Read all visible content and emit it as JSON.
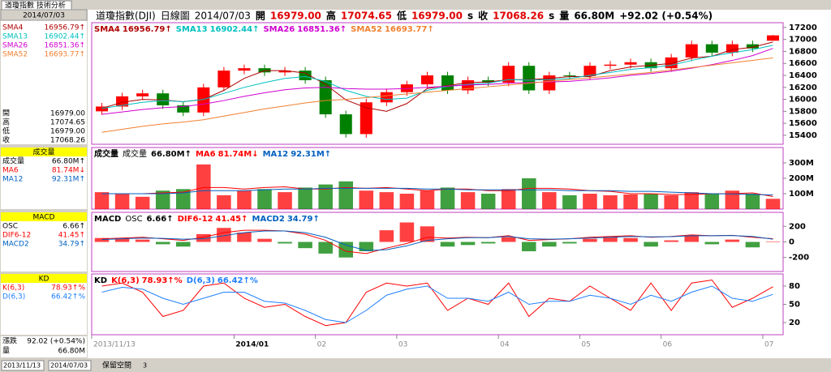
{
  "window": {
    "tab": "道瓊指數 技術分析"
  },
  "header": {
    "items": [
      {
        "text": "道瓊指數(DJI)",
        "color": "#000"
      },
      {
        "text": "日線圖",
        "color": "#000"
      },
      {
        "text": "2014/07/03",
        "color": "#000"
      },
      {
        "text": "開",
        "color": "#000"
      },
      {
        "text": "16979.00",
        "color": "#e00000"
      },
      {
        "text": "高",
        "color": "#000"
      },
      {
        "text": "17074.65",
        "color": "#e00000"
      },
      {
        "text": "低",
        "color": "#000"
      },
      {
        "text": "16979.00",
        "color": "#e00000"
      },
      {
        "text": "s",
        "color": "#000"
      },
      {
        "text": "收",
        "color": "#000"
      },
      {
        "text": "17068.26",
        "color": "#e00000"
      },
      {
        "text": "s",
        "color": "#000"
      },
      {
        "text": "量",
        "color": "#000"
      },
      {
        "text": "66.80M",
        "color": "#000"
      },
      {
        "text": "+92.02 (+0.54%)",
        "color": "#000"
      }
    ]
  },
  "sidebar": {
    "change_label": "漲跌",
    "change": "92.02 (+0.54%)",
    "volume_label": "量",
    "volume": "66.80M"
  },
  "toolbar": {
    "start": "2013/11/13",
    "end": "2014/07/03",
    "space": "保留空間",
    "count": "3"
  },
  "chart_data": [
    {
      "type": "candlestick",
      "categories": [
        "2013/11/13",
        null,
        null,
        null,
        null,
        null,
        null,
        "2014/01",
        null,
        null,
        null,
        "02",
        null,
        null,
        null,
        "03",
        null,
        null,
        null,
        null,
        "04",
        null,
        null,
        null,
        "05",
        null,
        null,
        null,
        "06",
        null,
        null,
        null,
        null,
        "07"
      ],
      "open": [
        15800,
        15880,
        16050,
        16100,
        15900,
        15780,
        16200,
        16480,
        16520,
        16450,
        16480,
        16320,
        15750,
        15420,
        15950,
        16120,
        16250,
        16400,
        16150,
        16320,
        16280,
        16560,
        16150,
        16400,
        16390,
        16560,
        16580,
        16620,
        16520,
        16700,
        16920,
        16780,
        16920,
        16979
      ],
      "high": [
        15940,
        16110,
        16160,
        16160,
        15960,
        16260,
        16540,
        16580,
        16580,
        16540,
        16540,
        16380,
        15810,
        16010,
        16180,
        16310,
        16460,
        16460,
        16380,
        16380,
        16620,
        16620,
        16460,
        16460,
        16620,
        16640,
        16680,
        16680,
        16760,
        16980,
        16980,
        16980,
        16980,
        17074.65
      ],
      "low": [
        15740,
        15820,
        15990,
        15840,
        15720,
        15720,
        16140,
        16420,
        16390,
        16390,
        16260,
        15690,
        15360,
        15360,
        15890,
        16060,
        16190,
        16090,
        16090,
        16220,
        16220,
        16090,
        16090,
        16340,
        16330,
        16500,
        16520,
        16460,
        16460,
        16640,
        16720,
        16720,
        16790,
        16979
      ],
      "close": [
        15880,
        16050,
        16100,
        15900,
        15780,
        16200,
        16480,
        16520,
        16450,
        16480,
        16320,
        15750,
        15420,
        15950,
        16120,
        16250,
        16400,
        16150,
        16320,
        16280,
        16560,
        16150,
        16400,
        16390,
        16560,
        16580,
        16620,
        16520,
        16700,
        16920,
        16780,
        16920,
        16850,
        17068.26
      ],
      "up_color": "#ff0000",
      "down_color": "#008000",
      "ylim": [
        15250,
        17280
      ],
      "yticks": [
        15400,
        15600,
        15800,
        16000,
        16200,
        16400,
        16600,
        16800,
        17000,
        17200
      ],
      "series": [
        {
          "name": "SMA4",
          "current": "16956.79↑",
          "color": "#b00000",
          "values": [
            15850,
            15950,
            16000,
            15990,
            15960,
            16000,
            16150,
            16350,
            16480,
            16480,
            16440,
            16250,
            15990,
            15860,
            15800,
            15930,
            16180,
            16230,
            16280,
            16290,
            16330,
            16330,
            16350,
            16380,
            16380,
            16480,
            16540,
            16570,
            16600,
            16690,
            16720,
            16830,
            16870,
            16956.79
          ]
        },
        {
          "name": "SMA13",
          "current": "16902.44↑",
          "color": "#00c0c0",
          "values": [
            15850,
            15900,
            15950,
            15980,
            15960,
            16000,
            16100,
            16200,
            16280,
            16350,
            16380,
            16300,
            16150,
            16050,
            16000,
            16020,
            16150,
            16220,
            16250,
            16270,
            16330,
            16320,
            16330,
            16350,
            16400,
            16450,
            16500,
            16530,
            16570,
            16650,
            16720,
            16780,
            16830,
            16902.44
          ]
        },
        {
          "name": "SMA26",
          "current": "16851.36↑",
          "color": "#d000d0",
          "values": [
            15750,
            15790,
            15830,
            15860,
            15880,
            15920,
            15980,
            16050,
            16110,
            16160,
            16190,
            16200,
            16180,
            16170,
            16170,
            16180,
            16200,
            16220,
            16240,
            16250,
            16270,
            16280,
            16290,
            16300,
            16330,
            16360,
            16400,
            16430,
            16470,
            16520,
            16580,
            16650,
            16730,
            16851.36
          ]
        },
        {
          "name": "SMA52",
          "current": "16693.77↑",
          "color": "#f08030",
          "values": [
            15450,
            15500,
            15550,
            15590,
            15620,
            15660,
            15720,
            15780,
            15840,
            15890,
            15940,
            15980,
            16000,
            16030,
            16060,
            16090,
            16120,
            16150,
            16180,
            16210,
            16240,
            16270,
            16300,
            16330,
            16360,
            16390,
            16420,
            16450,
            16490,
            16530,
            16570,
            16610,
            16650,
            16693.77
          ]
        }
      ]
    },
    {
      "type": "bar",
      "title": "成交量",
      "name": "成交量",
      "current": "66.80M↑",
      "color_by": "price",
      "values": [
        110,
        100,
        80,
        120,
        130,
        290,
        90,
        120,
        130,
        110,
        140,
        160,
        180,
        120,
        110,
        100,
        120,
        140,
        110,
        100,
        130,
        200,
        110,
        90,
        100,
        90,
        95,
        100,
        90,
        110,
        100,
        120,
        100,
        66.8
      ],
      "ylim": [
        0,
        400
      ],
      "yticks": [
        {
          "value": 100,
          "label": "100M"
        },
        {
          "value": 200,
          "label": "200M"
        },
        {
          "value": 300,
          "label": "300M"
        }
      ],
      "series": [
        {
          "name": "MA6",
          "current": "81.74M↓",
          "color": "#ff0000",
          "values": [
            100,
            100,
            100,
            105,
            110,
            140,
            140,
            130,
            140,
            145,
            130,
            130,
            140,
            135,
            140,
            130,
            120,
            130,
            130,
            120,
            120,
            135,
            135,
            130,
            120,
            115,
            100,
            100,
            95,
            95,
            100,
            100,
            105,
            81.74
          ]
        },
        {
          "name": "MA12",
          "current": "92.31M↑",
          "color": "#0060c0",
          "values": [
            100,
            100,
            100,
            100,
            105,
            120,
            120,
            120,
            125,
            130,
            130,
            135,
            135,
            135,
            135,
            135,
            130,
            130,
            125,
            125,
            125,
            125,
            125,
            120,
            120,
            120,
            115,
            115,
            110,
            105,
            100,
            98,
            95,
            92.31
          ]
        }
      ]
    },
    {
      "type": "bar",
      "title": "MACD",
      "name": "OSC",
      "current": "6.66↑",
      "color_by": "sign",
      "values": [
        50,
        40,
        30,
        -30,
        -60,
        100,
        180,
        120,
        40,
        -20,
        -80,
        -150,
        -200,
        -120,
        150,
        250,
        200,
        -60,
        -40,
        -20,
        60,
        -120,
        -60,
        -20,
        40,
        60,
        50,
        -60,
        20,
        80,
        -30,
        30,
        -70,
        6.66
      ],
      "ylim": [
        -380,
        380
      ],
      "yticks": [
        -200,
        0,
        200
      ],
      "series": [
        {
          "name": "DIF6-12",
          "current": "41.45↑",
          "color": "#ff0000",
          "values": [
            40,
            50,
            60,
            40,
            20,
            60,
            120,
            150,
            150,
            140,
            100,
            20,
            -120,
            -150,
            -80,
            -20,
            60,
            50,
            60,
            55,
            80,
            20,
            30,
            40,
            60,
            70,
            80,
            60,
            70,
            90,
            80,
            85,
            60,
            41.45
          ]
        },
        {
          "name": "MACD2",
          "current": "34.79↑",
          "color": "#0060c0",
          "values": [
            30,
            40,
            50,
            45,
            35,
            40,
            80,
            120,
            140,
            140,
            120,
            60,
            -40,
            -110,
            -100,
            -50,
            20,
            40,
            55,
            55,
            70,
            40,
            35,
            40,
            50,
            60,
            70,
            65,
            68,
            80,
            80,
            82,
            70,
            34.79
          ]
        }
      ]
    },
    {
      "type": "line",
      "title": "KD",
      "ylim": [
        0,
        100
      ],
      "yticks": [
        20,
        50,
        80
      ],
      "series": [
        {
          "name": "K(6,3)",
          "current": "78.93↑%",
          "color": "#ff0000",
          "values": [
            80,
            85,
            70,
            30,
            40,
            80,
            85,
            60,
            45,
            50,
            30,
            15,
            20,
            70,
            85,
            80,
            85,
            40,
            60,
            50,
            85,
            30,
            60,
            55,
            80,
            60,
            40,
            85,
            40,
            85,
            90,
            45,
            60,
            78.93
          ]
        },
        {
          "name": "D(6,3)",
          "current": "66.42↑%",
          "color": "#2080ff",
          "values": [
            70,
            78,
            75,
            60,
            50,
            60,
            70,
            70,
            55,
            52,
            40,
            25,
            20,
            40,
            65,
            75,
            80,
            60,
            60,
            55,
            70,
            50,
            55,
            55,
            65,
            60,
            50,
            65,
            55,
            70,
            80,
            60,
            55,
            66.42
          ]
        }
      ]
    }
  ]
}
